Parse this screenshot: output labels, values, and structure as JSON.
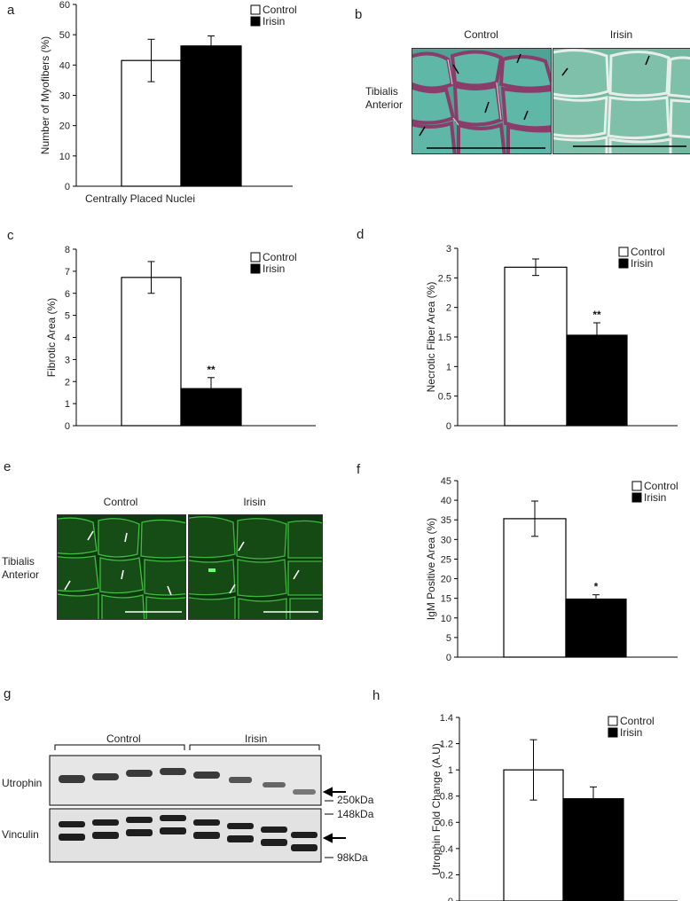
{
  "panels": {
    "a": "a",
    "b": "b",
    "c": "c",
    "d": "d",
    "e": "e",
    "f": "f",
    "g": "g",
    "h": "h"
  },
  "legend": {
    "control": "Control",
    "irisin": "Irisin"
  },
  "colors": {
    "control_fill": "#ffffff",
    "irisin_fill": "#000000",
    "axis": "#000000"
  },
  "chart_data": [
    {
      "id": "a",
      "type": "bar",
      "ylabel": "Number of Myofibers (%)",
      "xlabel": "Centrally Placed Nuclei",
      "ylim": [
        0,
        60
      ],
      "yticks": [
        0,
        10,
        20,
        30,
        40,
        50,
        60
      ],
      "legend_position": "top-right",
      "series": [
        {
          "name": "Control",
          "values": [
            41.5
          ],
          "error": [
            7
          ]
        },
        {
          "name": "Irisin",
          "values": [
            46.3
          ],
          "error": [
            3.3
          ]
        }
      ],
      "significance": [
        "",
        ""
      ]
    },
    {
      "id": "c",
      "type": "bar",
      "ylabel": "Fibrotic Area (%)",
      "xlabel": "",
      "ylim": [
        0,
        8
      ],
      "yticks": [
        0,
        1,
        2,
        3,
        4,
        5,
        6,
        7,
        8
      ],
      "legend_position": "top-right",
      "series": [
        {
          "name": "Control",
          "values": [
            6.72
          ],
          "error": [
            0.72
          ]
        },
        {
          "name": "Irisin",
          "values": [
            1.68
          ],
          "error": [
            0.5
          ]
        }
      ],
      "significance": [
        "",
        "**"
      ]
    },
    {
      "id": "d",
      "type": "bar",
      "ylabel": "Necrotic Fiber Area (%)",
      "xlabel": "",
      "ylim": [
        0,
        3
      ],
      "yticks": [
        0,
        0.5,
        1,
        1.5,
        2,
        2.5,
        3
      ],
      "legend_position": "top-right",
      "series": [
        {
          "name": "Control",
          "values": [
            2.68
          ],
          "error": [
            0.14
          ]
        },
        {
          "name": "Irisin",
          "values": [
            1.53
          ],
          "error": [
            0.21
          ]
        }
      ],
      "significance": [
        "",
        "**"
      ]
    },
    {
      "id": "f",
      "type": "bar",
      "ylabel": "IgM Positive Area (%)",
      "xlabel": "",
      "ylim": [
        0,
        45
      ],
      "yticks": [
        0,
        5,
        10,
        15,
        20,
        25,
        30,
        35,
        40,
        45
      ],
      "legend_position": "top-right",
      "series": [
        {
          "name": "Control",
          "values": [
            35.3
          ],
          "error": [
            4.5
          ]
        },
        {
          "name": "Irisin",
          "values": [
            14.8
          ],
          "error": [
            1.1
          ]
        }
      ],
      "significance": [
        "",
        "*"
      ]
    },
    {
      "id": "h",
      "type": "bar",
      "ylabel": "Utrophin Fold Change (A.U)",
      "xlabel": "",
      "ylim": [
        0,
        1.4
      ],
      "yticks": [
        0,
        0.2,
        0.4,
        0.6,
        0.8,
        1,
        1.2,
        1.4
      ],
      "legend_position": "top-right",
      "series": [
        {
          "name": "Control",
          "values": [
            1.0
          ],
          "error": [
            0.23
          ]
        },
        {
          "name": "Irisin",
          "values": [
            0.78
          ],
          "error": [
            0.09
          ]
        }
      ],
      "significance": [
        "",
        ""
      ]
    }
  ],
  "images": {
    "b": {
      "title_control": "Control",
      "title_irisin": "Irisin",
      "side_label": "Tibialis Anterior"
    },
    "e": {
      "title_control": "Control",
      "title_irisin": "Irisin",
      "side_label": "Tibialis Anterior"
    }
  },
  "blot": {
    "group_control": "Control",
    "group_irisin": "Irisin",
    "row_utrophin": "Utrophin",
    "row_vinculin": "Vinculin",
    "marker_250": "250kDa",
    "marker_148": "148kDa",
    "marker_98": "98kDa"
  }
}
